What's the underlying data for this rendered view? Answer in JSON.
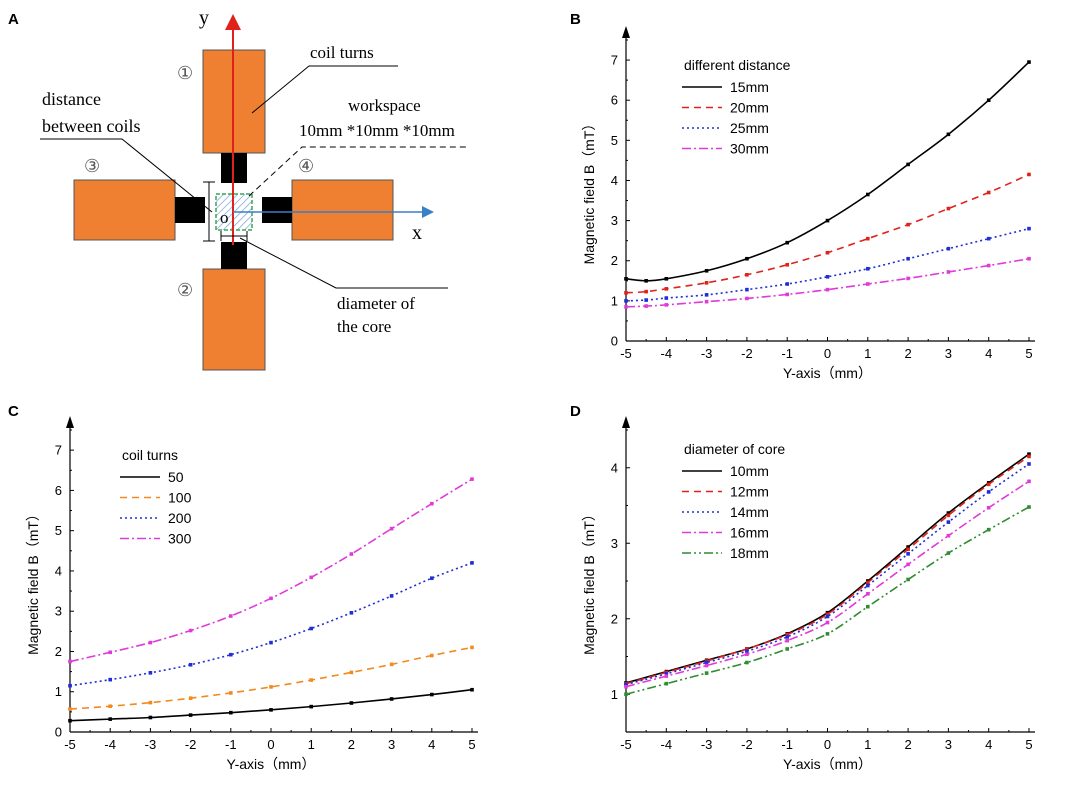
{
  "panel_letters": {
    "a": "A",
    "b": "B",
    "c": "C",
    "d": "D"
  },
  "diagram": {
    "axis_y": "y",
    "axis_x": "x",
    "origin": "o",
    "coil_1": "①",
    "coil_2": "②",
    "coil_3": "③",
    "coil_4": "④",
    "label_coil_turns": "coil turns",
    "label_distance_1": "distance",
    "label_distance_2": "between coils",
    "label_workspace_1": "workspace",
    "label_workspace_2": "10mm *10mm *10mm",
    "label_diameter_1": "diameter of",
    "label_diameter_2": "the core",
    "colors": {
      "coil": "#ef7f31",
      "core": "#000000",
      "y_axis": "#e0221c",
      "x_axis": "#3b7fc4",
      "workspace": "#3aa655"
    }
  },
  "chart_data": [
    {
      "type": "line",
      "panel": "B",
      "xlabel": "Y-axis（mm）",
      "ylabel": "Magnetic field B（mT）",
      "xlim": [
        -5,
        5
      ],
      "ylim": [
        0,
        7.5
      ],
      "xticks": [
        "-5",
        "-4",
        "-3",
        "-2",
        "-1",
        "0",
        "1",
        "2",
        "3",
        "4",
        "5"
      ],
      "yticks": [
        "0",
        "1",
        "2",
        "3",
        "4",
        "5",
        "6",
        "7"
      ],
      "legend_title": "different distance",
      "x": [
        -5,
        -4.5,
        -4,
        -3,
        -2,
        -1,
        0,
        1,
        2,
        3,
        4,
        5
      ],
      "series": [
        {
          "name": "15mm",
          "color": "#000000",
          "dash": "",
          "values": [
            1.55,
            1.5,
            1.55,
            1.75,
            2.05,
            2.45,
            3.0,
            3.65,
            4.4,
            5.15,
            6.0,
            6.95
          ]
        },
        {
          "name": "20mm",
          "color": "#e0221c",
          "dash": "7,5",
          "values": [
            1.2,
            1.23,
            1.3,
            1.45,
            1.65,
            1.9,
            2.2,
            2.55,
            2.9,
            3.3,
            3.7,
            4.15
          ]
        },
        {
          "name": "25mm",
          "color": "#1f2fd6",
          "dash": "2,3",
          "values": [
            1.0,
            1.02,
            1.07,
            1.15,
            1.28,
            1.42,
            1.6,
            1.8,
            2.05,
            2.3,
            2.55,
            2.8
          ]
        },
        {
          "name": "30mm",
          "color": "#e03ad9",
          "dash": "9,3,2,3",
          "values": [
            0.85,
            0.87,
            0.9,
            0.98,
            1.06,
            1.16,
            1.28,
            1.42,
            1.56,
            1.72,
            1.88,
            2.05
          ]
        }
      ]
    },
    {
      "type": "line",
      "panel": "C",
      "xlabel": "Y-axis（mm）",
      "ylabel": "Magnetic field B（mT）",
      "xlim": [
        -5,
        5
      ],
      "ylim": [
        0,
        7.5
      ],
      "xticks": [
        "-5",
        "-4",
        "-3",
        "-2",
        "-1",
        "0",
        "1",
        "2",
        "3",
        "4",
        "5"
      ],
      "yticks": [
        "0",
        "1",
        "2",
        "3",
        "4",
        "5",
        "6",
        "7"
      ],
      "legend_title": "coil turns",
      "x": [
        -5,
        -4,
        -3,
        -2,
        -1,
        0,
        1,
        2,
        3,
        4,
        5
      ],
      "series": [
        {
          "name": "50",
          "color": "#000000",
          "dash": "",
          "values": [
            0.28,
            0.32,
            0.36,
            0.42,
            0.48,
            0.55,
            0.63,
            0.72,
            0.82,
            0.93,
            1.05
          ]
        },
        {
          "name": "100",
          "color": "#f28a1e",
          "dash": "7,5",
          "values": [
            0.57,
            0.64,
            0.73,
            0.84,
            0.97,
            1.12,
            1.29,
            1.48,
            1.68,
            1.9,
            2.1
          ]
        },
        {
          "name": "200",
          "color": "#1f2fd6",
          "dash": "2,3",
          "values": [
            1.15,
            1.3,
            1.47,
            1.67,
            1.92,
            2.22,
            2.57,
            2.96,
            3.38,
            3.82,
            4.2
          ]
        },
        {
          "name": "300",
          "color": "#e03ad9",
          "dash": "9,3,2,3",
          "values": [
            1.75,
            1.98,
            2.22,
            2.52,
            2.88,
            3.32,
            3.84,
            4.42,
            5.05,
            5.67,
            6.28
          ]
        }
      ]
    },
    {
      "type": "line",
      "panel": "D",
      "xlabel": "Y-axis（mm）",
      "ylabel": "Magnetic field B（mT）",
      "xlim": [
        -5,
        5
      ],
      "ylim": [
        0.5,
        4.5
      ],
      "xticks": [
        "-5",
        "-4",
        "-3",
        "-2",
        "-1",
        "0",
        "1",
        "2",
        "3",
        "4",
        "5"
      ],
      "yticks": [
        "1",
        "2",
        "3",
        "4"
      ],
      "legend_title": "diameter of core",
      "x": [
        -5,
        -4,
        -3,
        -2,
        -1,
        0,
        1,
        2,
        3,
        4,
        5
      ],
      "series": [
        {
          "name": "10mm",
          "color": "#000000",
          "dash": "",
          "values": [
            1.15,
            1.3,
            1.45,
            1.6,
            1.8,
            2.08,
            2.5,
            2.95,
            3.4,
            3.8,
            4.18
          ]
        },
        {
          "name": "12mm",
          "color": "#e0221c",
          "dash": "7,5",
          "values": [
            1.14,
            1.29,
            1.44,
            1.6,
            1.79,
            2.06,
            2.48,
            2.92,
            3.37,
            3.78,
            4.15
          ]
        },
        {
          "name": "14mm",
          "color": "#1f2fd6",
          "dash": "2,3",
          "values": [
            1.13,
            1.27,
            1.42,
            1.57,
            1.76,
            2.03,
            2.44,
            2.86,
            3.28,
            3.68,
            4.05
          ]
        },
        {
          "name": "16mm",
          "color": "#e03ad9",
          "dash": "9,3,2,3",
          "values": [
            1.1,
            1.24,
            1.38,
            1.53,
            1.71,
            1.95,
            2.33,
            2.72,
            3.1,
            3.47,
            3.82
          ]
        },
        {
          "name": "18mm",
          "color": "#2f8c2f",
          "dash": "9,3,2,3,2,3",
          "values": [
            1.0,
            1.14,
            1.28,
            1.42,
            1.6,
            1.8,
            2.16,
            2.52,
            2.87,
            3.18,
            3.48
          ]
        }
      ]
    }
  ]
}
